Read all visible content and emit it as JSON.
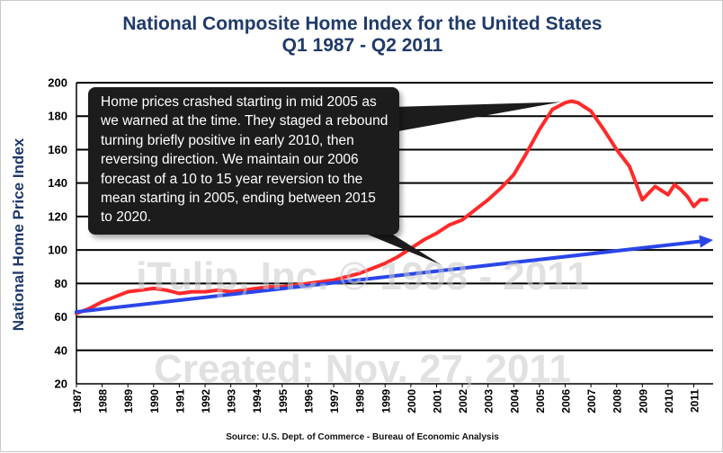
{
  "chart_data": {
    "type": "line",
    "title": "National Composite Home Index for the United States",
    "subtitle": "Q1 1987 - Q2 2011",
    "ylabel": "National Home Price Index",
    "xlabel": "",
    "source": "Source: U.S. Dept. of Commerce - Bureau of Economic Analysis",
    "ylim": [
      20,
      200
    ],
    "yticks": [
      "20",
      "40",
      "60",
      "80",
      "100",
      "120",
      "140",
      "160",
      "180",
      "200"
    ],
    "xlim": [
      1987,
      2011.75
    ],
    "xticks": [
      "1987",
      "1988",
      "1989",
      "1990",
      "1991",
      "1992",
      "1993",
      "1994",
      "1995",
      "1996",
      "1997",
      "1998",
      "1999",
      "2000",
      "2001",
      "2002",
      "2003",
      "2004",
      "2005",
      "2006",
      "2007",
      "2008",
      "2009",
      "2010",
      "2011"
    ],
    "grid": "horizontal",
    "series": [
      {
        "color": "#ff2a2a",
        "x": [
          1987.0,
          1987.5,
          1988.0,
          1988.5,
          1989.0,
          1989.5,
          1990.0,
          1990.5,
          1991.0,
          1991.5,
          1992.0,
          1992.5,
          1993.0,
          1993.5,
          1994.0,
          1994.5,
          1995.0,
          1995.5,
          1996.0,
          1996.5,
          1997.0,
          1997.5,
          1998.0,
          1998.5,
          1999.0,
          1999.5,
          2000.0,
          2000.5,
          2001.0,
          2001.5,
          2002.0,
          2002.5,
          2003.0,
          2003.5,
          2004.0,
          2004.5,
          2005.0,
          2005.5,
          2006.0,
          2006.25,
          2006.5,
          2007.0,
          2007.5,
          2008.0,
          2008.5,
          2009.0,
          2009.5,
          2010.0,
          2010.25,
          2010.5,
          2010.75,
          2011.0,
          2011.25,
          2011.5
        ],
        "y": [
          62,
          65,
          69,
          72,
          75,
          76,
          77,
          76,
          74,
          75,
          75,
          76,
          75,
          76,
          77,
          78,
          78,
          79,
          80,
          81,
          82,
          84,
          86,
          89,
          92,
          96,
          101,
          106,
          110,
          115,
          118,
          124,
          130,
          137,
          145,
          158,
          172,
          184,
          188,
          189,
          188,
          183,
          172,
          160,
          150,
          130,
          138,
          133,
          139,
          136,
          132,
          126,
          130,
          130
        ]
      },
      {
        "name": "trend",
        "color": "#2a46e8",
        "x": [
          1987.0,
          2011.75
        ],
        "y": [
          63,
          106
        ]
      }
    ],
    "annotation": "Home prices crashed starting in mid 2005 as we warned at the time. They staged a rebound turning briefly positive in early 2010, then reversing direction. We maintain our 2006 forecast of a 10 to 15 year reversion to the mean starting in 2005, ending between 2015 to 2020.",
    "watermarks": [
      "iTulip, Inc. © 1998 - 2011",
      "Created: Nov. 27, 2011"
    ]
  }
}
